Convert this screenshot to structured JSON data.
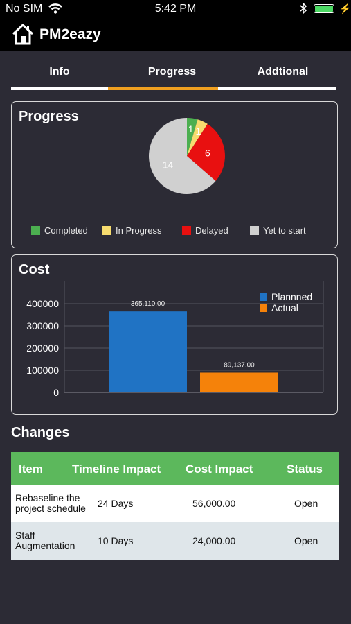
{
  "status_bar": {
    "carrier": "No SIM",
    "time": "5:42 PM",
    "wifi_icon": "wifi-icon",
    "bluetooth_icon": "bluetooth-icon",
    "battery_icon": "battery-icon",
    "battery_color": "#4cd964"
  },
  "header": {
    "title": "PM2eazy",
    "icon": "home-icon"
  },
  "tabs": [
    {
      "label": "Info",
      "indicator_color": "#ffffff"
    },
    {
      "label": "Progress",
      "indicator_color": "#f0a020",
      "selected": true
    },
    {
      "label": "Addtional",
      "indicator_color": "#ffffff"
    }
  ],
  "progress_card": {
    "title": "Progress",
    "chart_data": {
      "type": "pie",
      "slices": [
        {
          "label": "Completed",
          "value": 1,
          "color": "#4caf50",
          "data_label": "1"
        },
        {
          "label": "In Progress",
          "value": 1,
          "color": "#f7dc6f",
          "data_label": "1"
        },
        {
          "label": "Delayed",
          "value": 6,
          "color": "#e81010",
          "data_label": "6"
        },
        {
          "label": "Yet to start",
          "value": 14,
          "color": "#d0d0d0",
          "data_label": "14"
        }
      ],
      "legend": [
        "Completed",
        "In Progress",
        "Delayed",
        "Yet to start"
      ],
      "legend_position": "bottom"
    }
  },
  "cost_card": {
    "title": "Cost",
    "chart_data": {
      "type": "bar",
      "series": [
        {
          "name": "Plannned",
          "value": 365110,
          "data_label": "365,110.00",
          "color": "#2073c4"
        },
        {
          "name": "Actual",
          "value": 89137,
          "data_label": "89,137.00",
          "color": "#f5820a"
        }
      ],
      "ylim": [
        0,
        500000
      ],
      "yticks": [
        "0",
        "100000",
        "200000",
        "300000",
        "400000"
      ],
      "ytick_values": [
        0,
        100000,
        200000,
        300000,
        400000
      ],
      "grid": true,
      "legend_position": "top-right"
    }
  },
  "changes": {
    "title": "Changes",
    "header_color": "#5cb85c",
    "columns": [
      "Item",
      "Timeline Impact",
      "Cost Impact",
      "Status"
    ],
    "rows": [
      {
        "item": "Rebaseline the project schedule",
        "timeline": "24 Days",
        "cost": "56,000.00",
        "status": "Open"
      },
      {
        "item": "Staff Augmentation",
        "timeline": "10 Days",
        "cost": "24,000.00",
        "status": "Open"
      }
    ]
  }
}
